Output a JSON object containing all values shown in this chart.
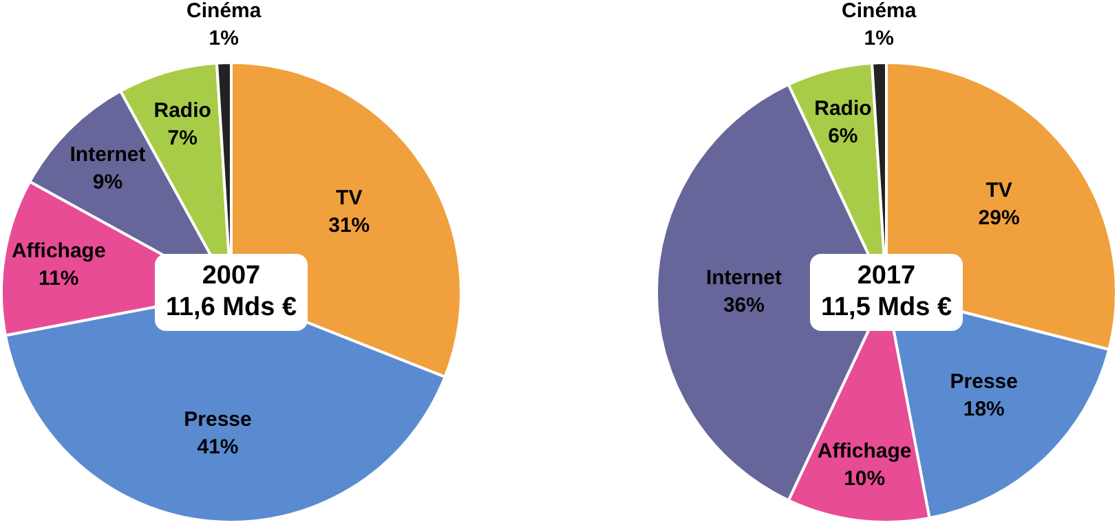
{
  "chart_data": [
    {
      "type": "pie",
      "title": "2007",
      "subtitle": "11,6 Mds €",
      "categories": [
        "TV",
        "Presse",
        "Affichage",
        "Internet",
        "Radio",
        "Cinéma"
      ],
      "values": [
        31,
        41,
        11,
        9,
        7,
        1
      ],
      "colors": [
        "#f0a03c",
        "#5a8bd0",
        "#e84c94",
        "#66669a",
        "#a8cc48",
        "#222222"
      ],
      "value_labels": [
        "31%",
        "41%",
        "11%",
        "9%",
        "7%",
        "1%"
      ],
      "legend": false
    },
    {
      "type": "pie",
      "title": "2017",
      "subtitle": "11,5 Mds €",
      "categories": [
        "TV",
        "Presse",
        "Affichage",
        "Internet",
        "Radio",
        "Cinéma"
      ],
      "values": [
        29,
        18,
        10,
        36,
        6,
        1
      ],
      "colors": [
        "#f0a03c",
        "#5a8bd0",
        "#e84c94",
        "#66669a",
        "#a8cc48",
        "#222222"
      ],
      "value_labels": [
        "29%",
        "18%",
        "10%",
        "36%",
        "6%",
        "1%"
      ],
      "legend": false
    }
  ]
}
